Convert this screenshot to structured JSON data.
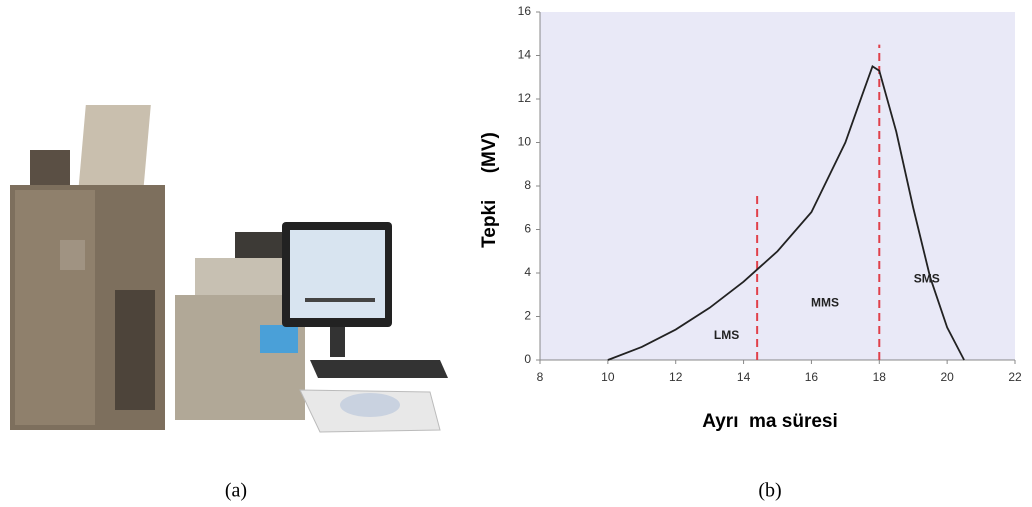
{
  "figure": {
    "captions": [
      "(a)",
      "(b)"
    ]
  },
  "chart_data": {
    "type": "line",
    "x_label": "Ayrı  ma süresi",
    "y_label": "Tepki     (MV)",
    "x": [
      10,
      11,
      12,
      13,
      14,
      15,
      16,
      17,
      17.5,
      17.8,
      18,
      18.5,
      19,
      19.5,
      20,
      20.5
    ],
    "values": [
      0,
      0.6,
      1.4,
      2.4,
      3.6,
      5.0,
      6.8,
      10.0,
      12.2,
      13.5,
      13.3,
      10.5,
      7.0,
      3.8,
      1.5,
      0
    ],
    "color": "#222222",
    "xlim": [
      8,
      22
    ],
    "xticks": [
      8,
      10,
      12,
      14,
      16,
      18,
      20,
      22
    ],
    "ylim": [
      0,
      16
    ],
    "yticks": [
      0,
      2,
      4,
      6,
      8,
      10,
      12,
      14,
      16
    ],
    "background": "#e9e9f7",
    "vlines": [
      {
        "x": 14.4,
        "ymax": 7.7,
        "color": "#e0404a"
      },
      {
        "x": 18,
        "ymax": 14.5,
        "color": "#e0404a"
      }
    ],
    "annotations": [
      {
        "text": "LMS",
        "x": 13.5,
        "y": 1.1
      },
      {
        "text": "MMS",
        "x": 16.4,
        "y": 2.6
      },
      {
        "text": "SMS",
        "x": 19.4,
        "y": 3.7
      }
    ]
  }
}
